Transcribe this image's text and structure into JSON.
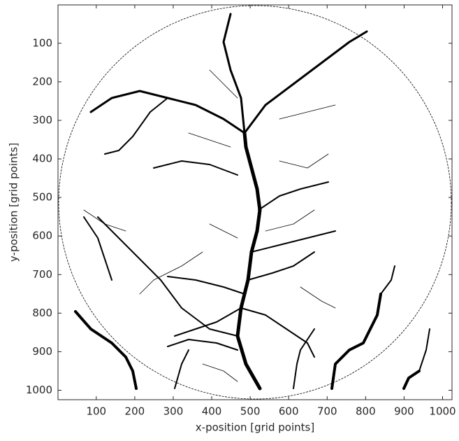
{
  "chart_data": {
    "type": "image",
    "xlabel": "x-position [grid points]",
    "ylabel": "y-position [grid points]",
    "xlim": [
      0.5,
      1024.5
    ],
    "ylim": [
      1024.5,
      0.5
    ],
    "xticks": [
      100,
      200,
      300,
      400,
      500,
      600,
      700,
      800,
      900,
      1000
    ],
    "yticks": [
      100,
      200,
      300,
      400,
      500,
      600,
      700,
      800,
      900,
      1000
    ]
  }
}
